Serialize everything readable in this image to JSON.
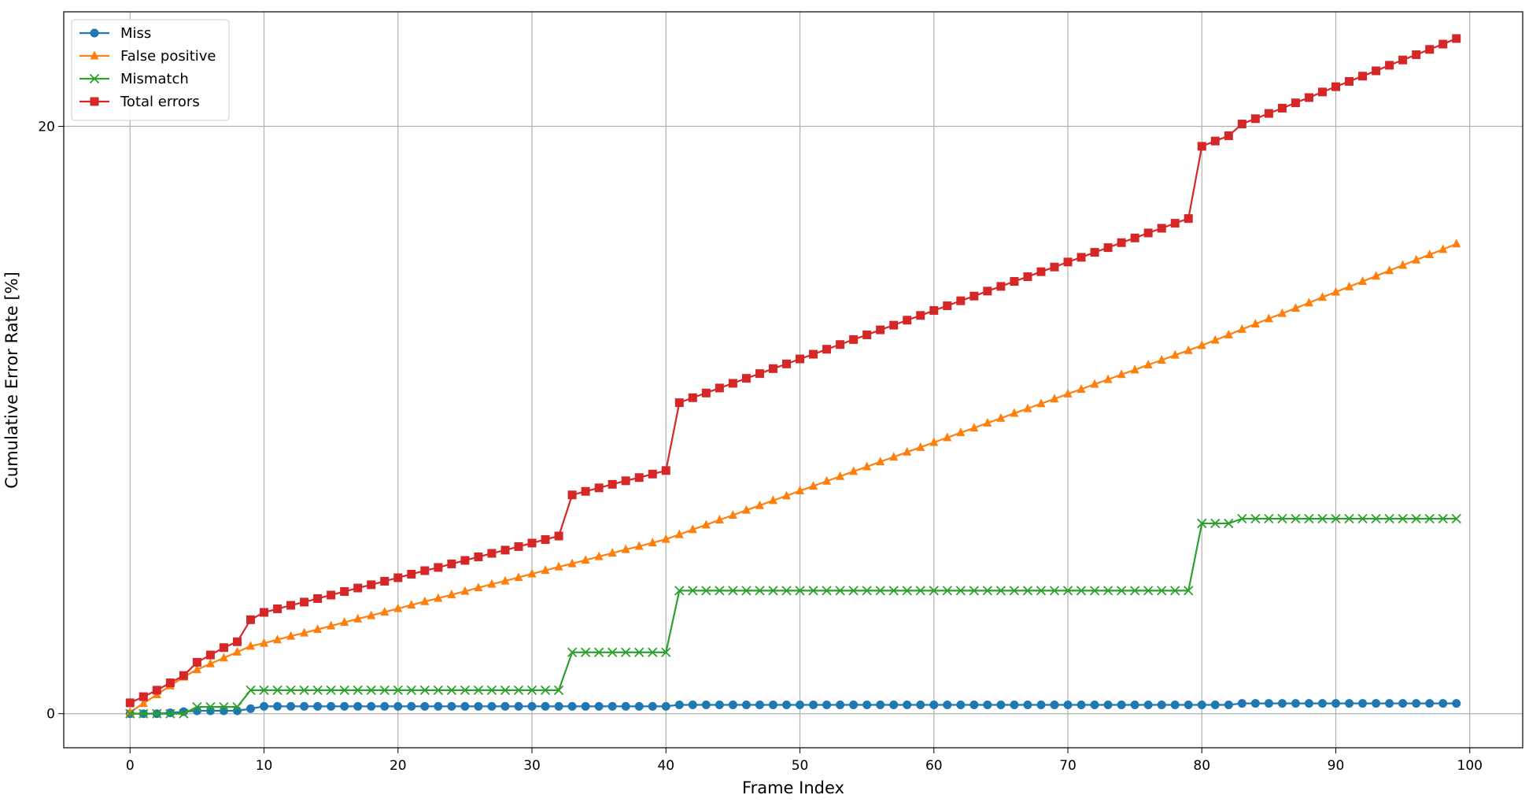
{
  "chart_data": {
    "type": "line",
    "xlabel": "Frame Index",
    "ylabel": "Cumulative Error Rate [%]",
    "x": [
      0,
      1,
      2,
      3,
      4,
      5,
      6,
      7,
      8,
      9,
      10,
      11,
      12,
      13,
      14,
      15,
      16,
      17,
      18,
      19,
      20,
      21,
      22,
      23,
      24,
      25,
      26,
      27,
      28,
      29,
      30,
      31,
      32,
      33,
      34,
      35,
      36,
      37,
      38,
      39,
      40,
      41,
      42,
      43,
      44,
      45,
      46,
      47,
      48,
      49,
      50,
      51,
      52,
      53,
      54,
      55,
      56,
      57,
      58,
      59,
      60,
      61,
      62,
      63,
      64,
      65,
      66,
      67,
      68,
      69,
      70,
      71,
      72,
      73,
      74,
      75,
      76,
      77,
      78,
      79,
      80,
      81,
      82,
      83,
      84,
      85,
      86,
      87,
      88,
      89,
      90,
      91,
      92,
      93,
      94,
      95,
      96,
      97,
      98,
      99
    ],
    "series": [
      {
        "name": "Miss",
        "color": "#1f77b4",
        "marker": "circle",
        "values": [
          0,
          0,
          0,
          0.03,
          0.07,
          0.1,
          0.1,
          0.1,
          0.1,
          0.17,
          0.25,
          0.25,
          0.25,
          0.25,
          0.25,
          0.25,
          0.25,
          0.25,
          0.25,
          0.25,
          0.25,
          0.25,
          0.25,
          0.25,
          0.25,
          0.25,
          0.25,
          0.25,
          0.25,
          0.25,
          0.25,
          0.25,
          0.25,
          0.25,
          0.25,
          0.25,
          0.25,
          0.25,
          0.25,
          0.25,
          0.25,
          0.3,
          0.3,
          0.3,
          0.3,
          0.3,
          0.3,
          0.3,
          0.3,
          0.3,
          0.3,
          0.3,
          0.3,
          0.3,
          0.3,
          0.3,
          0.3,
          0.3,
          0.3,
          0.3,
          0.3,
          0.3,
          0.3,
          0.3,
          0.3,
          0.3,
          0.3,
          0.3,
          0.3,
          0.3,
          0.3,
          0.3,
          0.3,
          0.3,
          0.3,
          0.3,
          0.3,
          0.3,
          0.3,
          0.3,
          0.3,
          0.3,
          0.3,
          0.35,
          0.35,
          0.35,
          0.35,
          0.35,
          0.35,
          0.35,
          0.35,
          0.35,
          0.35,
          0.35,
          0.35,
          0.35,
          0.35,
          0.35,
          0.35,
          0.35
        ]
      },
      {
        "name": "False positive",
        "color": "#ff7f0e",
        "marker": "triangle",
        "values": [
          0.05,
          0.35,
          0.65,
          0.95,
          1.25,
          1.5,
          1.7,
          1.9,
          2.1,
          2.3,
          2.4,
          2.52,
          2.64,
          2.75,
          2.87,
          2.99,
          3.11,
          3.23,
          3.34,
          3.46,
          3.58,
          3.7,
          3.82,
          3.93,
          4.05,
          4.17,
          4.29,
          4.41,
          4.52,
          4.64,
          4.76,
          4.88,
          5,
          5.11,
          5.23,
          5.35,
          5.47,
          5.59,
          5.7,
          5.82,
          5.94,
          6.1,
          6.27,
          6.43,
          6.6,
          6.76,
          6.93,
          7.09,
          7.26,
          7.42,
          7.59,
          7.75,
          7.92,
          8.08,
          8.25,
          8.41,
          8.58,
          8.74,
          8.91,
          9.07,
          9.24,
          9.4,
          9.57,
          9.73,
          9.9,
          10.06,
          10.23,
          10.39,
          10.56,
          10.72,
          10.89,
          11.05,
          11.22,
          11.38,
          11.55,
          11.71,
          11.88,
          12.04,
          12.21,
          12.37,
          12.54,
          12.72,
          12.9,
          13.09,
          13.27,
          13.45,
          13.63,
          13.81,
          13.99,
          14.18,
          14.36,
          14.54,
          14.72,
          14.9,
          15.09,
          15.27,
          15.45,
          15.63,
          15.81,
          16
        ]
      },
      {
        "name": "Mismatch",
        "color": "#2ca02c",
        "marker": "x",
        "values": [
          0,
          0,
          0,
          0,
          0,
          0.23,
          0.23,
          0.23,
          0.23,
          0.8,
          0.8,
          0.8,
          0.8,
          0.8,
          0.8,
          0.8,
          0.8,
          0.8,
          0.8,
          0.8,
          0.8,
          0.8,
          0.8,
          0.8,
          0.8,
          0.8,
          0.8,
          0.8,
          0.8,
          0.8,
          0.8,
          0.8,
          0.8,
          2.09,
          2.09,
          2.09,
          2.09,
          2.09,
          2.09,
          2.09,
          2.09,
          4.19,
          4.19,
          4.19,
          4.19,
          4.19,
          4.19,
          4.19,
          4.19,
          4.19,
          4.19,
          4.19,
          4.19,
          4.19,
          4.19,
          4.19,
          4.19,
          4.19,
          4.19,
          4.19,
          4.19,
          4.19,
          4.19,
          4.19,
          4.19,
          4.19,
          4.19,
          4.19,
          4.19,
          4.19,
          4.19,
          4.19,
          4.19,
          4.19,
          4.19,
          4.19,
          4.19,
          4.19,
          4.19,
          4.19,
          6.48,
          6.48,
          6.48,
          6.64,
          6.64,
          6.64,
          6.64,
          6.64,
          6.64,
          6.64,
          6.64,
          6.64,
          6.64,
          6.64,
          6.64,
          6.64,
          6.64,
          6.64,
          6.64,
          6.64
        ]
      },
      {
        "name": "Total errors",
        "color": "#d62728",
        "marker": "square",
        "values": [
          0.37,
          0.58,
          0.8,
          1.05,
          1.3,
          1.75,
          2,
          2.25,
          2.45,
          3.2,
          3.45,
          3.57,
          3.69,
          3.8,
          3.92,
          4.04,
          4.16,
          4.28,
          4.39,
          4.51,
          4.63,
          4.75,
          4.87,
          4.98,
          5.1,
          5.22,
          5.34,
          5.46,
          5.57,
          5.69,
          5.81,
          5.93,
          6.05,
          7.45,
          7.57,
          7.69,
          7.81,
          7.93,
          8.04,
          8.16,
          8.28,
          10.59,
          10.76,
          10.92,
          11.09,
          11.25,
          11.42,
          11.58,
          11.75,
          11.91,
          12.08,
          12.24,
          12.41,
          12.57,
          12.74,
          12.9,
          13.07,
          13.23,
          13.4,
          13.56,
          13.73,
          13.89,
          14.06,
          14.22,
          14.39,
          14.55,
          14.72,
          14.88,
          15.05,
          15.21,
          15.38,
          15.54,
          15.71,
          15.87,
          16.04,
          16.2,
          16.37,
          16.53,
          16.7,
          16.86,
          19.32,
          19.5,
          19.68,
          20.08,
          20.26,
          20.44,
          20.62,
          20.8,
          20.98,
          21.17,
          21.35,
          21.53,
          21.71,
          21.89,
          22.08,
          22.26,
          22.44,
          22.62,
          22.8,
          22.99
        ]
      }
    ],
    "xlim": [
      -4.95,
      103.95
    ],
    "ylim": [
      -1.16,
      23.9
    ],
    "xticks": [
      0,
      10,
      20,
      30,
      40,
      50,
      60,
      70,
      80,
      90,
      100
    ],
    "yticks": [
      0,
      20
    ],
    "grid": true,
    "legend": "upper left"
  }
}
